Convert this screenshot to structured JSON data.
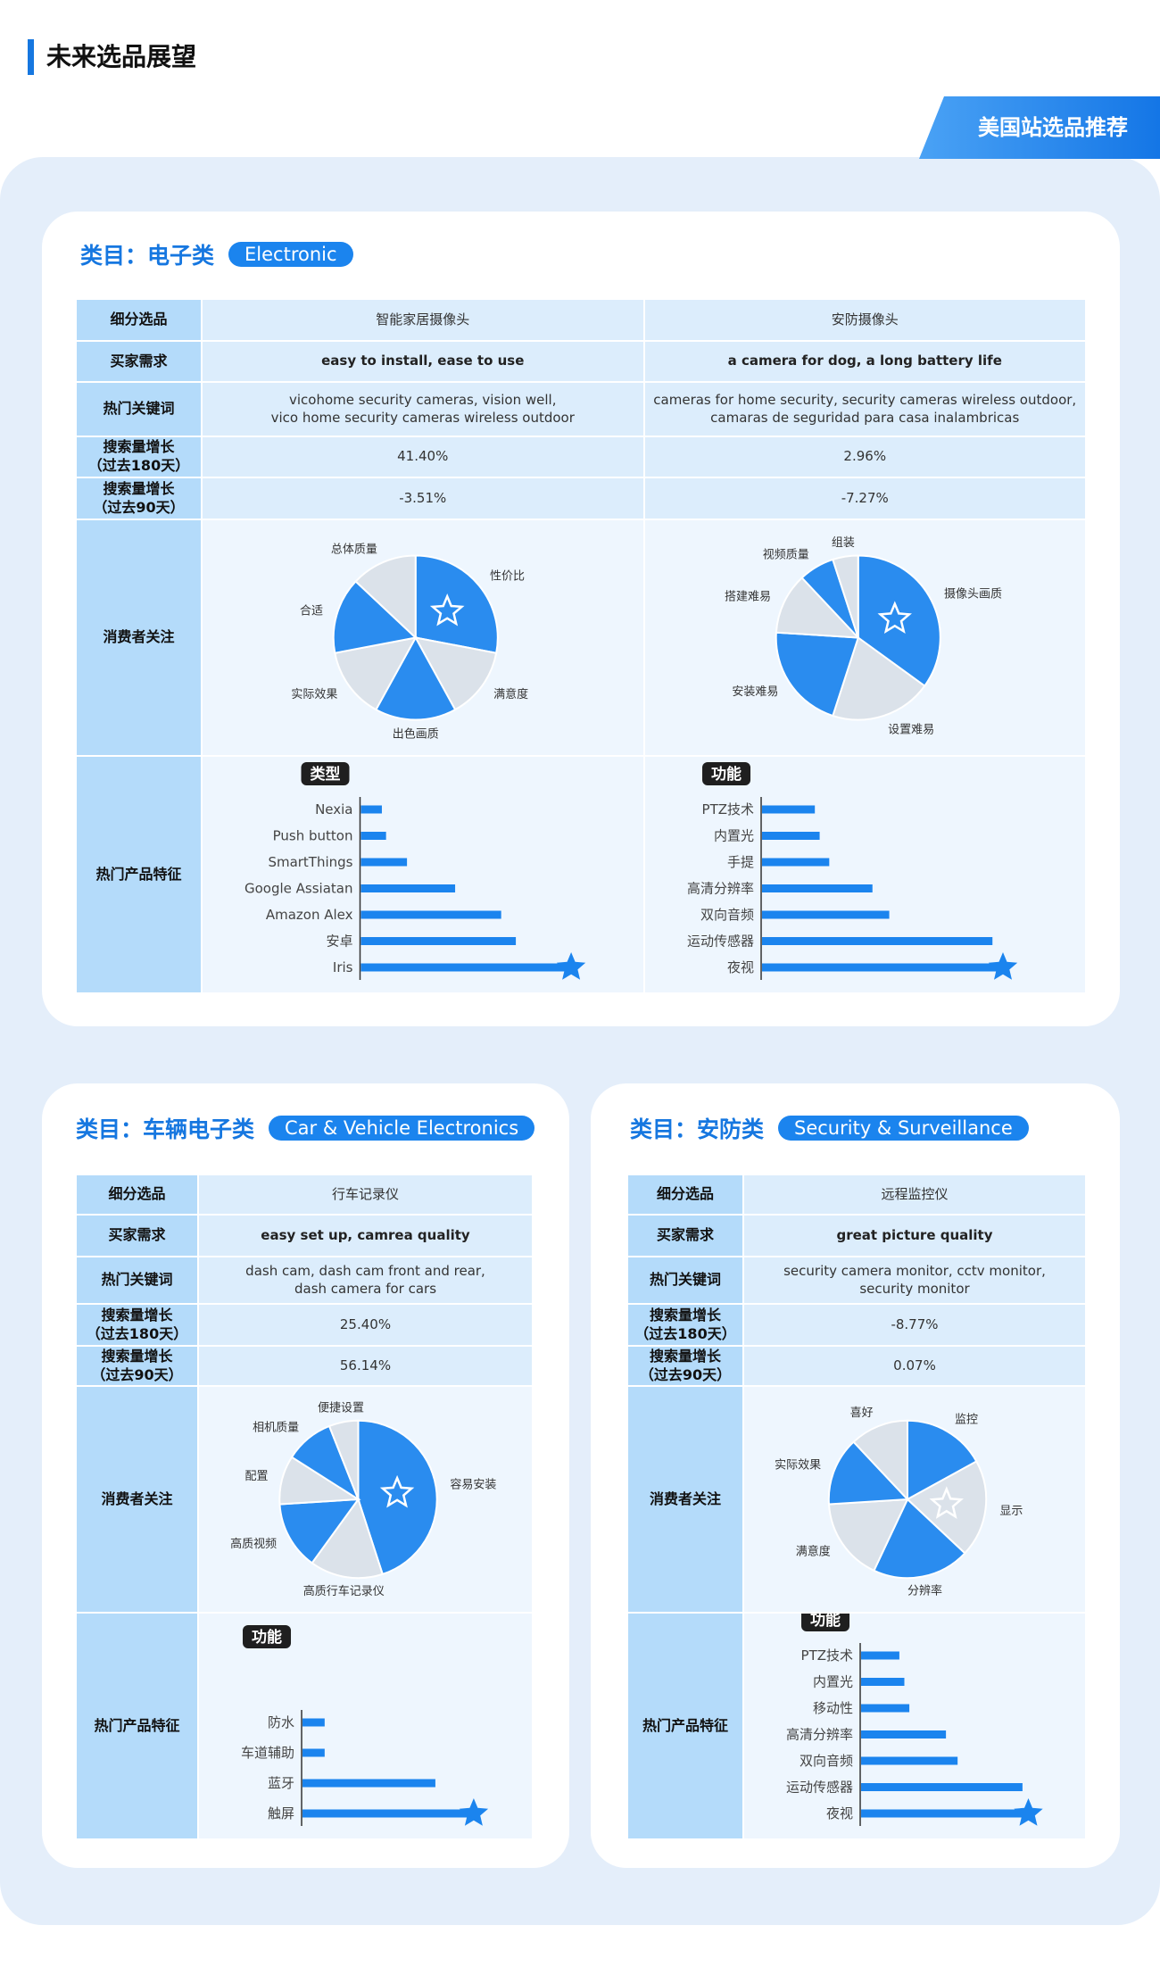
{
  "header": {
    "title": "未来选品展望",
    "tab": "美国站选品推荐"
  },
  "sections": [
    {
      "title": "类目：电子类",
      "tag": "Electronic",
      "row_labels": [
        "细分选品",
        "买家需求",
        "热门关键词",
        "搜索量增长\n（过去180天）",
        "搜索量增长\n（过去90天）",
        "消费者关注",
        "热门产品特征"
      ],
      "columns": [
        {
          "product": "智能家居摄像头",
          "demand": "easy to install, ease to use",
          "keywords": "vicohome security cameras, vision well,\nvico home security cameras wireless outdoor",
          "growth_180": "41.40%",
          "growth_90": "-3.51%",
          "focus": {
            "type": "pie",
            "categories": [
              "性价比",
              "满意度",
              "出色画质",
              "实际效果",
              "合适",
              "总体质量"
            ],
            "values": [
              28,
              14,
              16,
              14,
              15,
              13
            ],
            "colors": [
              "#2a8cef",
              "#dbe2ea",
              "#2a8cef",
              "#dbe2ea",
              "#2a8cef",
              "#dbe2ea"
            ]
          },
          "features": {
            "type": "bar",
            "label": "类型",
            "categories": [
              "Nexia",
              "Push button",
              "SmartThings",
              "Google Assiatan",
              "Amazon Alex",
              "安卓",
              "Iris"
            ],
            "values": [
              10,
              12,
              22,
              45,
              67,
              74,
              100
            ],
            "xlim": [
              0,
              100
            ],
            "color": "#1b84ee"
          }
        },
        {
          "product": "安防摄像头",
          "demand": "a camera for dog, a long battery life",
          "keywords": "cameras for home security, security cameras wireless outdoor,\ncamaras de seguridad para casa inalambricas",
          "growth_180": "2.96%",
          "growth_90": "-7.27%",
          "focus": {
            "type": "pie",
            "categories": [
              "摄像头画质",
              "设置难易",
              "安装难易",
              "搭建难易",
              "视频质量",
              "组装"
            ],
            "values": [
              35,
              20,
              21,
              12,
              7,
              5
            ],
            "colors": [
              "#2a8cef",
              "#dbe2ea",
              "#2a8cef",
              "#dbe2ea",
              "#2a8cef",
              "#dbe2ea"
            ]
          },
          "features": {
            "type": "bar",
            "label": "功能",
            "categories": [
              "PTZ技术",
              "内置光",
              "手提",
              "高清分辨率",
              "双向音频",
              "运动传感器",
              "夜视"
            ],
            "values": [
              22,
              24,
              28,
              46,
              53,
              96,
              100
            ],
            "xlim": [
              0,
              100
            ],
            "color": "#1b84ee"
          }
        }
      ]
    },
    {
      "title": "类目：车辆电子类",
      "tag": "Car & Vehicle Electronics",
      "row_labels": [
        "细分选品",
        "买家需求",
        "热门关键词",
        "搜索量增长\n（过去180天）",
        "搜索量增长\n（过去90天）",
        "消费者关注",
        "热门产品特征"
      ],
      "columns": [
        {
          "product": "行车记录仪",
          "demand": "easy set up, camrea quality",
          "keywords": "dash cam, dash cam front and rear,\ndash camera for cars",
          "growth_180": "25.40%",
          "growth_90": "56.14%",
          "focus": {
            "type": "pie",
            "categories": [
              "容易安装",
              "高质行车记录仪",
              "高质视频",
              "配置",
              "相机质量",
              "便捷设置"
            ],
            "values": [
              45,
              15,
              14,
              10,
              10,
              6
            ],
            "colors": [
              "#2a8cef",
              "#dbe2ea",
              "#2a8cef",
              "#dbe2ea",
              "#2a8cef",
              "#dbe2ea"
            ]
          },
          "features": {
            "type": "bar",
            "label": "功能",
            "categories": [
              "防水",
              "车道辅助",
              "蓝牙",
              "触屏"
            ],
            "values": [
              13,
              13,
              78,
              100
            ],
            "xlim": [
              0,
              100
            ],
            "color": "#1b84ee"
          }
        }
      ]
    },
    {
      "title": "类目：安防类",
      "tag": "Security & Surveillance",
      "row_labels": [
        "细分选品",
        "买家需求",
        "热门关键词",
        "搜索量增长\n（过去180天）",
        "搜索量增长\n（过去90天）",
        "消费者关注",
        "热门产品特征"
      ],
      "columns": [
        {
          "product": "远程监控仪",
          "demand": "great picture quality",
          "keywords": "security camera monitor, cctv monitor,\nsecurity monitor",
          "growth_180": "-8.77%",
          "growth_90": "0.07%",
          "focus": {
            "type": "pie",
            "categories": [
              "监控",
              "显示",
              "分辨率",
              "满意度",
              "实际效果",
              "喜好"
            ],
            "values": [
              17,
              20,
              20,
              17,
              14,
              12
            ],
            "colors": [
              "#2a8cef",
              "#dbe2ea",
              "#2a8cef",
              "#dbe2ea",
              "#2a8cef",
              "#dbe2ea"
            ]
          },
          "features": {
            "type": "bar",
            "label": "功能",
            "categories": [
              "PTZ技术",
              "内置光",
              "移动性",
              "高清分辨率",
              "双向音频",
              "运动传感器",
              "夜视"
            ],
            "values": [
              23,
              26,
              29,
              51,
              58,
              97,
              100
            ],
            "xlim": [
              0,
              100
            ],
            "color": "#1b84ee"
          }
        }
      ]
    }
  ]
}
